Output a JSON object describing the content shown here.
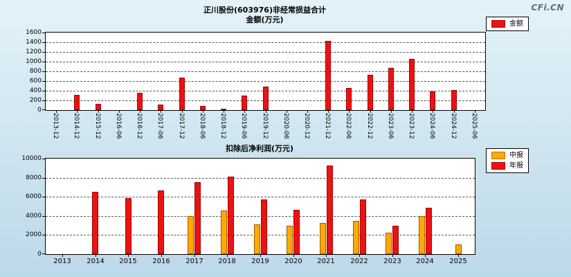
{
  "logo": "CFi.CN",
  "colors": {
    "amount_bar": "#ee1111",
    "interim_bar": "#ffaa00",
    "annual_bar": "#ee1111",
    "background_top": "#e4f2f9",
    "background_bottom": "#bcd9ea"
  },
  "chart_data": [
    {
      "type": "bar",
      "title": "正川股份(603976)非经常损益合计",
      "subtitle": "金额(万元)",
      "legend": [
        {
          "label": "金额",
          "color": "#ee1111"
        }
      ],
      "legend_position": "top-right",
      "grid": "dashed-horizontal",
      "ylim": [
        0,
        1600
      ],
      "yticks": [
        0,
        200,
        400,
        600,
        800,
        1000,
        1200,
        1400,
        1600
      ],
      "categories": [
        "2013-12",
        "2014-12",
        "2015-12",
        "2016-06",
        "2016-12",
        "2017-06",
        "2017-12",
        "2018-06",
        "2018-12",
        "2019-06",
        "2019-12",
        "2020-06",
        "2020-12",
        "2021-12",
        "2022-06",
        "2022-12",
        "2023-06",
        "2023-12",
        "2024-06",
        "2024-12",
        "2025-06"
      ],
      "values": [
        null,
        320,
        130,
        null,
        350,
        120,
        670,
        90,
        30,
        300,
        480,
        null,
        null,
        1430,
        450,
        730,
        870,
        1050,
        380,
        420,
        null
      ]
    },
    {
      "type": "bar",
      "title": "扣除后净利润(万元)",
      "legend": [
        {
          "label": "中报",
          "color": "#ffaa00"
        },
        {
          "label": "年报",
          "color": "#ee1111"
        }
      ],
      "legend_position": "right",
      "grid": "dashed-horizontal",
      "ylim": [
        0,
        10000
      ],
      "yticks": [
        0,
        2000,
        4000,
        6000,
        8000,
        10000
      ],
      "categories": [
        "2013",
        "2014",
        "2015",
        "2016",
        "2017",
        "2018",
        "2019",
        "2020",
        "2021",
        "2022",
        "2023",
        "2024",
        "2025"
      ],
      "series": [
        {
          "name": "中报",
          "color": "#ffaa00",
          "values": [
            null,
            null,
            null,
            null,
            4000,
            4600,
            3100,
            3000,
            3250,
            3500,
            2250,
            4000,
            1050
          ]
        },
        {
          "name": "年报",
          "color": "#ee1111",
          "values": [
            null,
            6500,
            5900,
            6700,
            7500,
            8100,
            5700,
            4650,
            9300,
            5700,
            3000,
            4850,
            null
          ]
        }
      ]
    }
  ]
}
